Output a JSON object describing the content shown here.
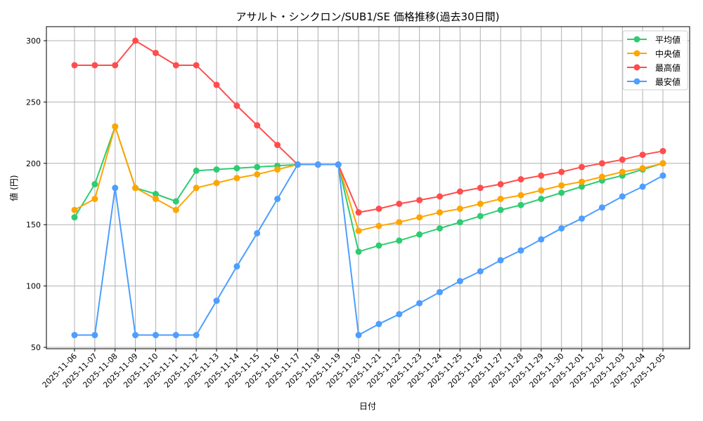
{
  "chart_data": {
    "type": "line",
    "title": "アサルト・シンクロン/SUB1/SE 価格推移(過去30日間)",
    "xlabel": "日付",
    "ylabel": "値 (円)",
    "ylim": [
      48,
      312
    ],
    "yticks": [
      50,
      100,
      150,
      200,
      250,
      300
    ],
    "grid": true,
    "legend_position": "top-right",
    "x": [
      "2025-11-06",
      "2025-11-07",
      "2025-11-08",
      "2025-11-09",
      "2025-11-10",
      "2025-11-11",
      "2025-11-12",
      "2025-11-13",
      "2025-11-14",
      "2025-11-15",
      "2025-11-16",
      "2025-11-17",
      "2025-11-18",
      "2025-11-19",
      "2025-11-20",
      "2025-11-21",
      "2025-11-22",
      "2025-11-23",
      "2025-11-24",
      "2025-11-25",
      "2025-11-26",
      "2025-11-27",
      "2025-11-28",
      "2025-11-29",
      "2025-11-30",
      "2025-12-01",
      "2025-12-02",
      "2025-12-03",
      "2025-12-04",
      "2025-12-05"
    ],
    "series": [
      {
        "name": "平均値",
        "color": "#2ecc71",
        "values": [
          156,
          183,
          230,
          180,
          175,
          169,
          194,
          195,
          196,
          197,
          198,
          199,
          199,
          199,
          128,
          133,
          137,
          142,
          147,
          152,
          157,
          162,
          166,
          171,
          176,
          181,
          186,
          190,
          195,
          200
        ]
      },
      {
        "name": "中央値",
        "color": "#ffa500",
        "values": [
          162,
          171,
          230,
          180,
          171,
          162,
          180,
          184,
          188,
          191,
          195,
          199,
          199,
          199,
          145,
          149,
          152,
          156,
          160,
          163,
          167,
          171,
          174,
          178,
          182,
          185,
          189,
          193,
          196,
          200
        ]
      },
      {
        "name": "最高値",
        "color": "#ff4d4d",
        "values": [
          280,
          280,
          280,
          300,
          290,
          280,
          280,
          264,
          247,
          231,
          215,
          199,
          199,
          199,
          160,
          163,
          167,
          170,
          173,
          177,
          180,
          183,
          187,
          190,
          193,
          197,
          200,
          203,
          207,
          210
        ]
      },
      {
        "name": "最安値",
        "color": "#4d9eff",
        "values": [
          60,
          60,
          180,
          60,
          60,
          60,
          60,
          88,
          116,
          143,
          171,
          199,
          199,
          199,
          60,
          69,
          77,
          86,
          95,
          104,
          112,
          121,
          129,
          138,
          147,
          155,
          164,
          173,
          181,
          190
        ]
      }
    ]
  }
}
